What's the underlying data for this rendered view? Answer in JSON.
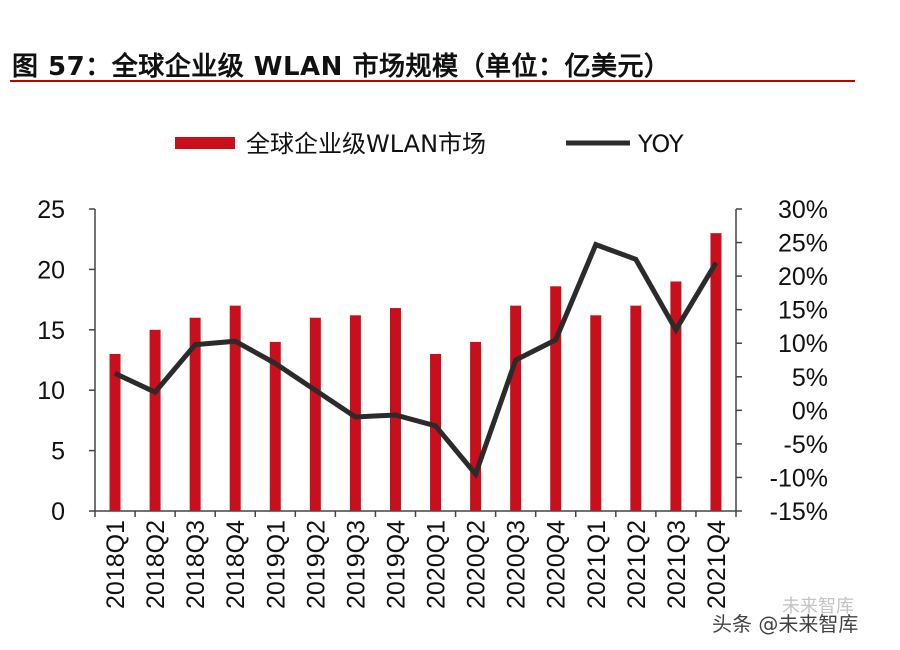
{
  "header": {
    "title": "图 57：全球企业级 WLAN 市场规模（单位：亿美元）"
  },
  "watermark": {
    "text": "头条 @未来智库",
    "faint_text": "未来智库"
  },
  "colors": {
    "bar": "#c8101c",
    "line": "#2b2b2b",
    "rule": "#c00000"
  },
  "chart_data": {
    "type": "bar",
    "categories": [
      "2018Q1",
      "2018Q2",
      "2018Q3",
      "2018Q4",
      "2019Q1",
      "2019Q2",
      "2019Q3",
      "2019Q4",
      "2020Q1",
      "2020Q2",
      "2020Q3",
      "2020Q4",
      "2021Q1",
      "2021Q2",
      "2021Q3",
      "2021Q4"
    ],
    "series": [
      {
        "name": "全球企业级WLAN市场",
        "type": "bar",
        "axis": "left",
        "values": [
          13,
          15,
          16,
          17,
          14,
          16,
          16.2,
          16.8,
          13,
          14,
          17,
          18.6,
          16.2,
          17,
          19,
          23
        ]
      },
      {
        "name": "YOY",
        "type": "line",
        "axis": "right",
        "values": [
          5.5,
          2.7,
          9.8,
          10.3,
          7,
          3,
          -1,
          -0.7,
          -2.3,
          -9.5,
          7.5,
          10.5,
          24.7,
          22.5,
          12,
          22
        ]
      }
    ],
    "y_left": {
      "lim": [
        0,
        25
      ],
      "ticks": [
        0,
        5,
        10,
        15,
        20,
        25
      ]
    },
    "y_right": {
      "lim": [
        -15,
        30
      ],
      "ticks": [
        -15,
        -10,
        -5,
        0,
        5,
        10,
        15,
        20,
        25,
        30
      ],
      "unit": "%"
    },
    "legend_placement": "top-center",
    "grid": false
  }
}
